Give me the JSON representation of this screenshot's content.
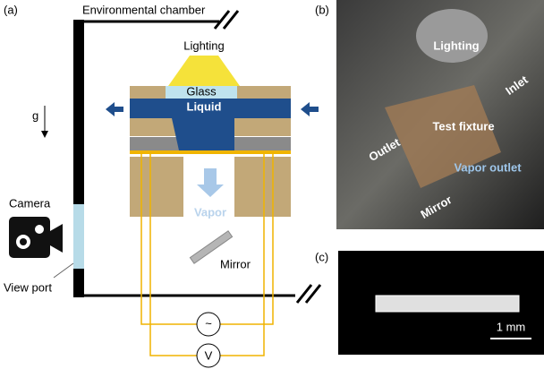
{
  "panel_a": {
    "label": "(a)",
    "chamber": "Environmental chamber",
    "lighting": "Lighting",
    "glass": "Glass",
    "liquid": "Liquid",
    "gravity": "g",
    "camera": "Camera",
    "view_port": "View port",
    "vapor": "Vapor",
    "mirror": "Mirror",
    "ac_source": "~",
    "voltmeter": "V"
  },
  "panel_b": {
    "label": "(b)",
    "lighting": "Lighting",
    "inlet": "Inlet",
    "test_fixture": "Test fixture",
    "outlet": "Outlet",
    "vapor_outlet": "Vapor outlet",
    "mirror": "Mirror"
  },
  "panel_c": {
    "label": "(c)",
    "scale": "1 mm"
  }
}
